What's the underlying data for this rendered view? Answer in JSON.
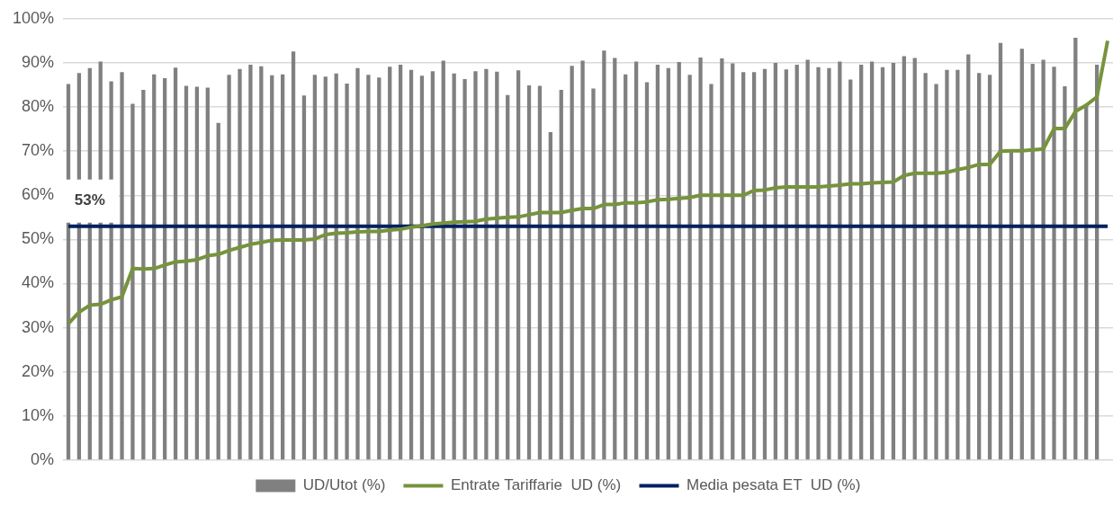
{
  "chart_data": {
    "type": "bar",
    "categories": [
      null,
      null,
      null,
      null,
      null,
      null,
      null,
      null,
      null,
      null,
      null,
      null,
      null,
      null,
      null,
      null,
      null,
      null,
      null,
      null,
      null,
      null,
      null,
      null,
      null,
      null,
      null,
      null,
      null,
      null,
      null,
      null,
      null,
      null,
      null,
      null,
      null,
      null,
      null,
      null,
      null,
      null,
      null,
      null,
      null,
      null,
      null,
      null,
      null,
      null,
      null,
      null,
      null,
      null,
      null,
      null,
      null,
      null,
      null,
      null,
      null,
      null,
      null,
      null,
      null,
      null,
      null,
      null,
      null,
      null,
      null,
      null,
      null,
      null,
      null,
      null,
      null,
      null,
      null,
      null,
      null,
      null,
      null,
      null,
      null,
      null,
      null,
      null,
      null,
      null,
      null,
      null,
      null,
      null,
      null,
      null,
      null,
      null
    ],
    "series": [
      {
        "name": "UD/Utot (%)",
        "color": "#808080",
        "values": [
          85.2,
          87.7,
          88.8,
          90.3,
          85.8,
          87.9,
          80.7,
          83.9,
          87.4,
          86.5,
          88.9,
          84.8,
          84.6,
          84.4,
          76.4,
          87.3,
          88.6,
          89.6,
          89.2,
          87.2,
          87.4,
          92.6,
          82.6,
          87.3,
          86.9,
          87.6,
          85.3,
          88.8,
          87.3,
          86.7,
          89.1,
          89.6,
          88.4,
          87.1,
          88.1,
          90.5,
          87.6,
          86.3,
          88.1,
          88.6,
          88.0,
          82.7,
          88.3,
          84.9,
          84.8,
          74.3,
          83.9,
          89.3,
          90.5,
          84.2,
          92.8,
          91.1,
          87.4,
          90.3,
          85.6,
          89.6,
          88.8,
          90.2,
          87.3,
          91.2,
          85.2,
          91.0,
          89.9,
          87.9,
          87.9,
          88.6,
          90.0,
          88.5,
          89.6,
          90.7,
          89.0,
          88.8,
          90.3,
          86.2,
          89.6,
          90.3,
          89.0,
          90.0,
          91.5,
          91.1,
          87.7,
          85.2,
          88.4,
          88.4,
          91.9,
          87.7,
          87.3,
          94.5,
          70.1,
          93.2,
          89.8,
          90.7,
          89.1,
          84.7,
          95.7,
          80.4,
          89.6,
          null
        ]
      },
      {
        "name": "Entrate Tariffarie  UD (%)",
        "type": "line",
        "color": "#77933c",
        "values": [
          30.9,
          33.5,
          35.1,
          35.3,
          36.3,
          37.0,
          43.4,
          43.3,
          43.4,
          44.2,
          44.9,
          45.1,
          45.4,
          46.3,
          46.6,
          47.5,
          48.2,
          48.9,
          49.3,
          49.8,
          49.9,
          49.9,
          49.9,
          50.1,
          51.1,
          51.4,
          51.5,
          51.7,
          51.8,
          51.8,
          52.1,
          52.3,
          52.8,
          53.1,
          53.5,
          53.7,
          53.9,
          54.0,
          54.1,
          54.6,
          54.8,
          55.0,
          55.1,
          55.6,
          56.1,
          56.1,
          56.1,
          56.6,
          57.0,
          57.0,
          57.9,
          57.9,
          58.3,
          58.3,
          58.5,
          59.0,
          59.1,
          59.3,
          59.5,
          60.0,
          60.0,
          60.0,
          60.0,
          60.0,
          61.1,
          61.2,
          61.7,
          61.9,
          61.9,
          61.9,
          61.9,
          62.1,
          62.3,
          62.6,
          62.6,
          62.8,
          62.9,
          63.0,
          64.5,
          65.0,
          65.0,
          65.0,
          65.2,
          65.8,
          66.3,
          67.0,
          67.0,
          70.0,
          70.1,
          70.1,
          70.3,
          70.5,
          75.1,
          75.1,
          79.0,
          80.4,
          82.3,
          95
        ]
      },
      {
        "name": "Media pesata ET  UD (%)",
        "type": "line",
        "color": "#002060",
        "values": [
          53,
          53,
          53,
          53,
          53,
          53,
          53,
          53,
          53,
          53,
          53,
          53,
          53,
          53,
          53,
          53,
          53,
          53,
          53,
          53,
          53,
          53,
          53,
          53,
          53,
          53,
          53,
          53,
          53,
          53,
          53,
          53,
          53,
          53,
          53,
          53,
          53,
          53,
          53,
          53,
          53,
          53,
          53,
          53,
          53,
          53,
          53,
          53,
          53,
          53,
          53,
          53,
          53,
          53,
          53,
          53,
          53,
          53,
          53,
          53,
          53,
          53,
          53,
          53,
          53,
          53,
          53,
          53,
          53,
          53,
          53,
          53,
          53,
          53,
          53,
          53,
          53,
          53,
          53,
          53,
          53,
          53,
          53,
          53,
          53,
          53,
          53,
          53,
          53,
          53,
          53,
          53,
          53,
          53,
          53,
          53,
          53,
          53
        ],
        "value_labels": [
          null,
          null,
          "53%",
          null,
          null,
          null,
          null,
          null,
          null,
          null,
          null,
          null,
          null,
          null,
          null,
          null,
          null,
          null,
          null,
          null,
          null,
          null,
          null,
          null,
          null,
          null,
          null,
          null,
          null,
          null,
          null,
          null,
          null,
          null,
          null,
          null,
          null,
          null,
          null,
          null,
          null,
          null,
          null,
          null,
          null,
          null,
          null,
          null,
          null,
          null,
          null,
          null,
          null,
          null,
          null,
          null,
          null,
          null,
          null,
          null,
          null,
          null,
          null,
          null,
          null,
          null,
          null,
          null,
          null,
          null,
          null,
          null,
          null,
          null,
          null,
          null,
          null,
          null,
          null,
          null,
          null,
          null,
          null,
          null,
          null,
          null,
          null,
          null,
          null,
          null,
          null,
          null,
          null,
          null,
          null,
          null,
          null,
          null
        ]
      }
    ],
    "ylim": [
      0,
      100
    ],
    "yticks": [
      {
        "value": 0,
        "label": "0%"
      },
      {
        "value": 10,
        "label": "10%"
      },
      {
        "value": 20,
        "label": "20%"
      },
      {
        "value": 30,
        "label": "30%"
      },
      {
        "value": 40,
        "label": "40%"
      },
      {
        "value": 50,
        "label": "50%"
      },
      {
        "value": 60,
        "label": "60%"
      },
      {
        "value": 70,
        "label": "70%"
      },
      {
        "value": 80,
        "label": "80%"
      },
      {
        "value": 90,
        "label": "90%"
      },
      {
        "value": 100,
        "label": "100%"
      }
    ],
    "grid": "y",
    "legend": "bottom",
    "tick_labels": "y"
  }
}
